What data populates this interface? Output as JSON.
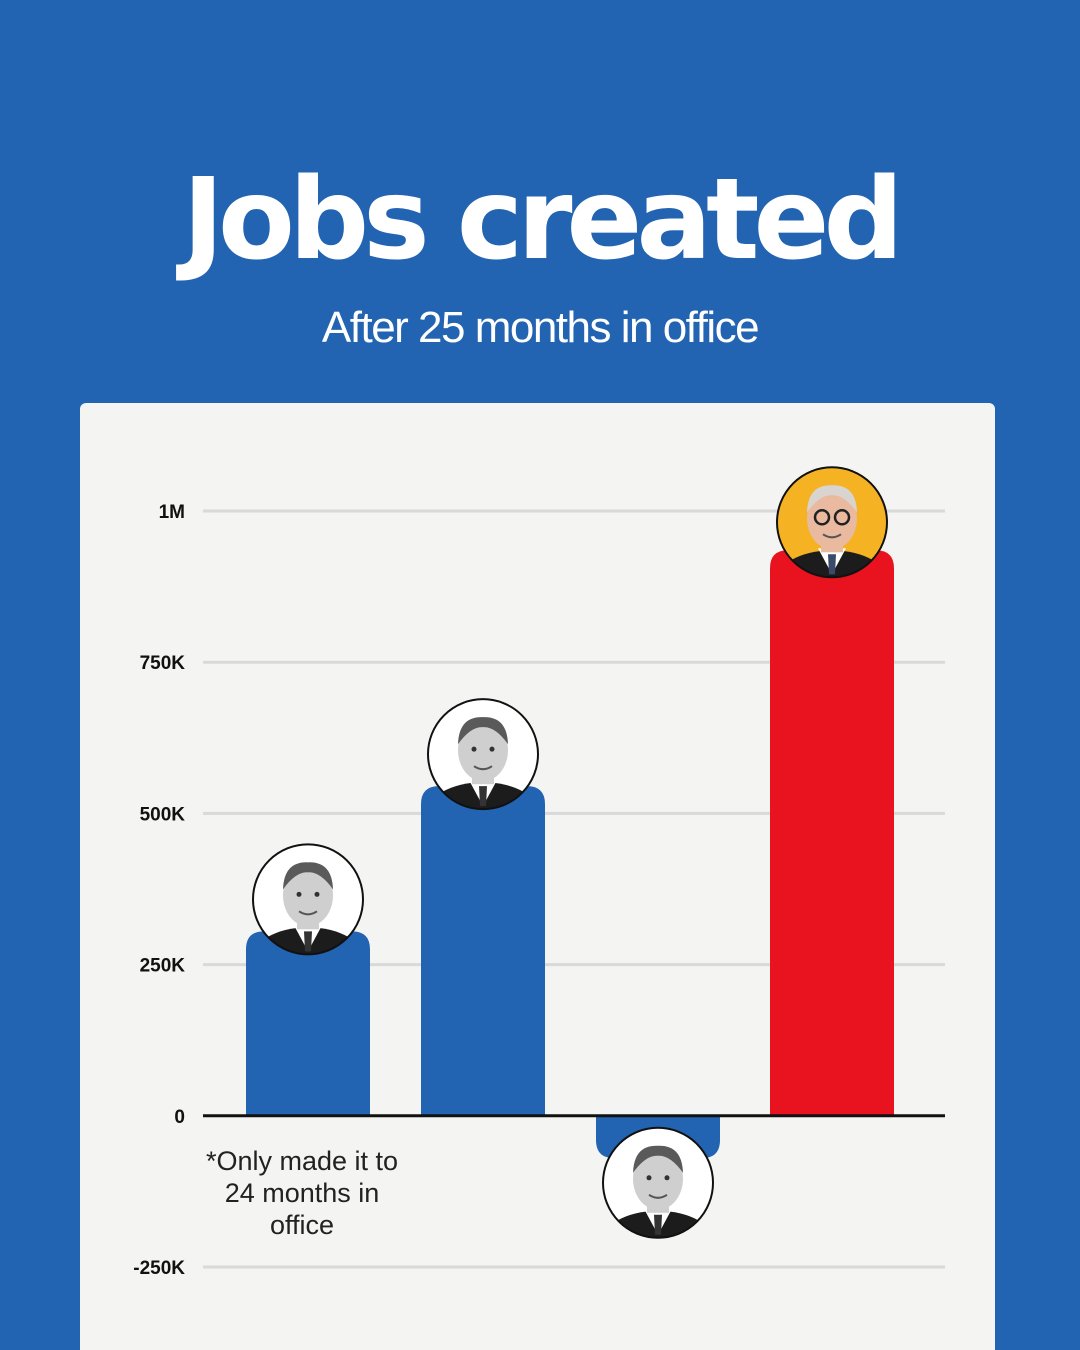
{
  "header": {
    "title": "Jobs created",
    "subtitle": "After 25 months in office"
  },
  "footnote": "*Only made it to 24 months in office",
  "colors": {
    "background": "#2264b2",
    "bar_blue": "#2264b2",
    "bar_red": "#e8131f",
    "portrait_highlight": "#f5b324"
  },
  "chart_data": {
    "type": "bar",
    "title": "Jobs created",
    "subtitle": "After 25 months in office",
    "ylim": [
      -250000,
      1000000
    ],
    "yticks": [
      1000000,
      750000,
      500000,
      250000,
      0,
      -250000
    ],
    "ytick_labels": [
      "1M",
      "750K",
      "500K",
      "250K",
      "0",
      "-250K"
    ],
    "grid": true,
    "series": [
      {
        "values": [
          305000,
          545000,
          -70000,
          935000
        ],
        "colors": [
          "#2264b2",
          "#2264b2",
          "#2264b2",
          "#e8131f"
        ]
      }
    ],
    "categories": [
      "",
      "",
      "",
      ""
    ],
    "markers": [
      "portrait-icon",
      "portrait-icon",
      "portrait-icon",
      "portrait-icon"
    ]
  }
}
